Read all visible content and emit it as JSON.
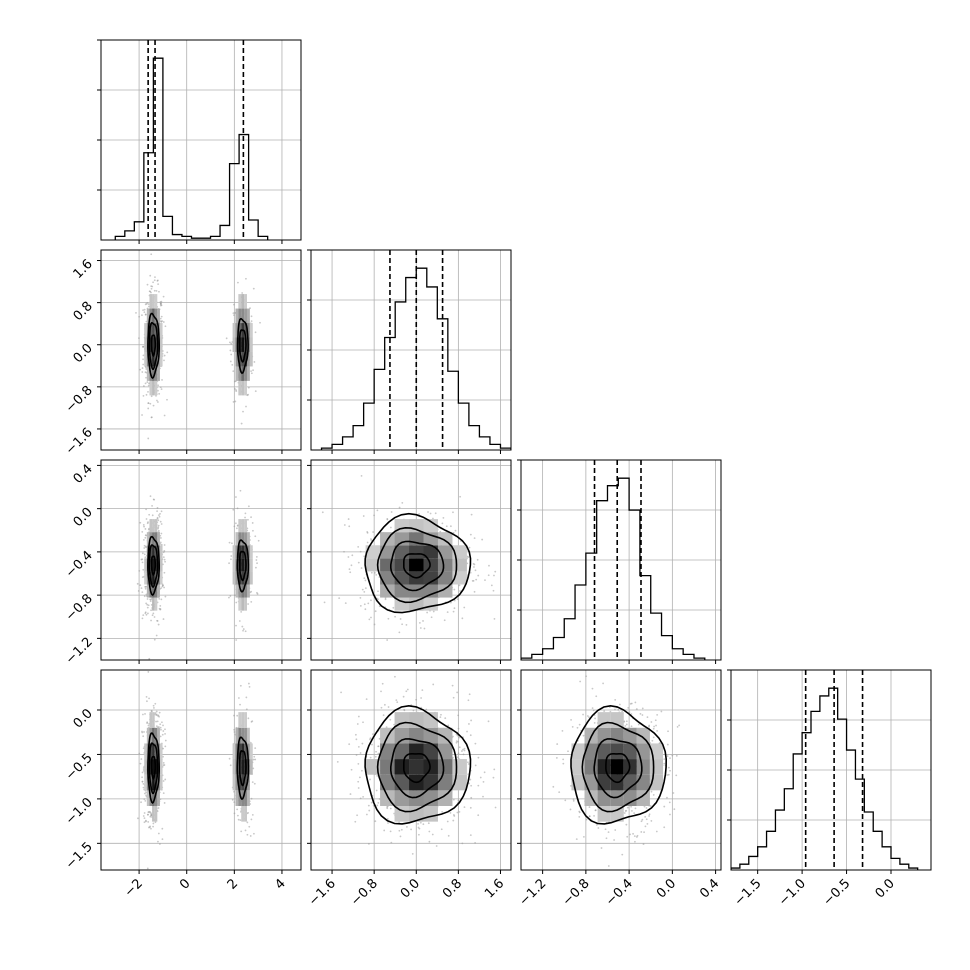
{
  "chart_data": {
    "type": "corner-plot",
    "grid": true,
    "colors": {
      "line": "#000000",
      "grid": "#b0b0b0",
      "scatter": "#9a9a9a"
    },
    "variables": [
      {
        "index": 0,
        "range": [
          -3.6,
          4.8
        ],
        "ticks": [
          -2,
          0,
          2,
          4
        ],
        "tick_labels": [
          "−2",
          "0",
          "2",
          "4"
        ],
        "quantiles": [
          -1.62,
          -1.33,
          2.38
        ],
        "hist": {
          "edges": [
            -3.0,
            -2.6,
            -2.2,
            -1.8,
            -1.4,
            -1.0,
            -0.6,
            -0.2,
            0.2,
            0.6,
            1.0,
            1.4,
            1.8,
            2.2,
            2.6,
            3.0,
            3.4
          ],
          "counts": [
            0.02,
            0.05,
            0.1,
            0.48,
            1.0,
            0.13,
            0.03,
            0.02,
            0.01,
            0.01,
            0.02,
            0.08,
            0.42,
            0.58,
            0.11,
            0.02
          ]
        }
      },
      {
        "index": 1,
        "range": [
          -2.0,
          1.8
        ],
        "ticks": [
          -1.6,
          -0.8,
          0.0,
          0.8,
          1.6
        ],
        "tick_labels": [
          "−1.6",
          "−0.8",
          "0.0",
          "0.8",
          "1.6"
        ],
        "quantiles": [
          -0.5,
          0.0,
          0.5
        ],
        "hist": {
          "edges": [
            -1.8,
            -1.6,
            -1.4,
            -1.2,
            -1.0,
            -0.8,
            -0.6,
            -0.4,
            -0.2,
            0.0,
            0.2,
            0.4,
            0.6,
            0.8,
            1.0,
            1.2,
            1.4,
            1.6,
            1.8
          ],
          "counts": [
            0.01,
            0.03,
            0.07,
            0.13,
            0.25,
            0.43,
            0.6,
            0.79,
            0.92,
            0.97,
            0.87,
            0.7,
            0.42,
            0.25,
            0.13,
            0.07,
            0.03,
            0.01
          ]
        }
      },
      {
        "index": 2,
        "range": [
          -1.4,
          0.45
        ],
        "ticks": [
          -1.2,
          -0.8,
          -0.4,
          0.0,
          0.4
        ],
        "tick_labels": [
          "−1.2",
          "−0.8",
          "−0.4",
          "0.0",
          "0.4"
        ],
        "quantiles": [
          -0.72,
          -0.51,
          -0.29
        ],
        "hist": {
          "edges": [
            -1.4,
            -1.3,
            -1.2,
            -1.1,
            -1.0,
            -0.9,
            -0.8,
            -0.7,
            -0.6,
            -0.5,
            -0.4,
            -0.3,
            -0.2,
            -0.1,
            0.0,
            0.1,
            0.2,
            0.3
          ],
          "counts": [
            0.01,
            0.03,
            0.06,
            0.12,
            0.22,
            0.4,
            0.57,
            0.85,
            0.93,
            0.97,
            0.8,
            0.45,
            0.25,
            0.13,
            0.06,
            0.03,
            0.01
          ]
        }
      },
      {
        "index": 3,
        "range": [
          -1.8,
          0.45
        ],
        "ticks": [
          -1.5,
          -1.0,
          -0.5,
          0.0
        ],
        "tick_labels": [
          "−1.5",
          "−1.0",
          "−0.5",
          "0.0"
        ],
        "quantiles": [
          -0.96,
          -0.64,
          -0.32
        ],
        "hist": {
          "edges": [
            -1.8,
            -1.7,
            -1.6,
            -1.5,
            -1.4,
            -1.3,
            -1.2,
            -1.1,
            -1.0,
            -0.9,
            -0.8,
            -0.7,
            -0.6,
            -0.5,
            -0.4,
            -0.3,
            -0.2,
            -0.1,
            0.0,
            0.1,
            0.2,
            0.3
          ],
          "counts": [
            0.01,
            0.03,
            0.07,
            0.12,
            0.2,
            0.31,
            0.42,
            0.6,
            0.71,
            0.82,
            0.9,
            0.94,
            0.78,
            0.62,
            0.47,
            0.3,
            0.2,
            0.12,
            0.06,
            0.03,
            0.01
          ]
        }
      }
    ],
    "joint": [
      {
        "x_var": 0,
        "y_var": 1,
        "y_ticks": [
          -1.6,
          -0.8,
          0.0,
          0.8,
          1.6
        ],
        "blobs": [
          {
            "center": [
              -1.4,
              0.0
            ],
            "sigma": [
              0.2,
              0.5
            ],
            "weight": 0.68,
            "contour_levels": [
              0.39,
              0.86,
              1.18
            ]
          },
          {
            "center": [
              2.35,
              0.0
            ],
            "sigma": [
              0.22,
              0.5
            ],
            "weight": 0.32,
            "contour_levels": [
              0.6,
              1.0
            ]
          }
        ]
      },
      {
        "x_var": 0,
        "y_var": 2,
        "y_ticks": [
          -1.2,
          -0.8,
          -0.4,
          0.0,
          0.4
        ],
        "blobs": [
          {
            "center": [
              -1.4,
              -0.52
            ],
            "sigma": [
              0.2,
              0.22
            ],
            "weight": 0.68,
            "contour_levels": [
              0.39,
              0.86,
              1.18
            ]
          },
          {
            "center": [
              2.35,
              -0.52
            ],
            "sigma": [
              0.22,
              0.22
            ],
            "weight": 0.32,
            "contour_levels": [
              0.6,
              1.05
            ]
          }
        ]
      },
      {
        "x_var": 1,
        "y_var": 2,
        "blobs": [
          {
            "center": [
              0.0,
              -0.52
            ],
            "sigma": [
              0.5,
              0.22
            ],
            "weight": 1.0,
            "contour_levels": [
              0.5,
              1.0,
              1.5,
              2.0
            ]
          }
        ]
      },
      {
        "x_var": 0,
        "y_var": 3,
        "y_ticks": [
          -1.5,
          -1.0,
          -0.5,
          0.0
        ],
        "blobs": [
          {
            "center": [
              -1.4,
              -0.64
            ],
            "sigma": [
              0.2,
              0.32
            ],
            "weight": 0.68,
            "contour_levels": [
              0.39,
              0.86,
              1.18
            ]
          },
          {
            "center": [
              2.35,
              -0.64
            ],
            "sigma": [
              0.22,
              0.32
            ],
            "weight": 0.32,
            "contour_levels": [
              0.6,
              1.05
            ]
          }
        ]
      },
      {
        "x_var": 1,
        "y_var": 3,
        "blobs": [
          {
            "center": [
              0.0,
              -0.64
            ],
            "sigma": [
              0.5,
              0.32
            ],
            "weight": 1.0,
            "contour_levels": [
              0.5,
              1.0,
              1.5,
              2.0
            ]
          }
        ]
      },
      {
        "x_var": 2,
        "y_var": 3,
        "blobs": [
          {
            "center": [
              -0.51,
              -0.64
            ],
            "sigma": [
              0.22,
              0.32
            ],
            "weight": 1.0,
            "contour_levels": [
              0.5,
              1.0,
              1.5,
              2.0
            ]
          }
        ]
      }
    ]
  }
}
